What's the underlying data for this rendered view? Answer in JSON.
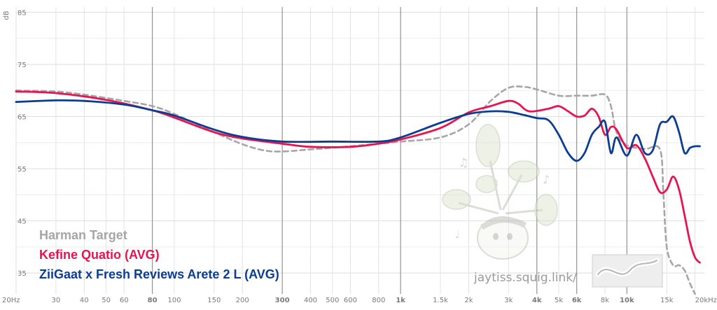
{
  "chart_data": {
    "type": "line",
    "xscale": "log",
    "xlim": [
      20,
      22000
    ],
    "ylim": [
      31,
      86
    ],
    "ylabel": "dB",
    "grid": true,
    "legend_position": "bottom-left",
    "y_ticks": [
      35,
      45,
      55,
      65,
      75,
      85
    ],
    "x_ticks": [
      {
        "v": 20,
        "label": "20Hz",
        "major": false
      },
      {
        "v": 30,
        "label": "30",
        "major": false
      },
      {
        "v": 40,
        "label": "40",
        "major": false
      },
      {
        "v": 50,
        "label": "50",
        "major": false
      },
      {
        "v": 60,
        "label": "60",
        "major": false
      },
      {
        "v": 80,
        "label": "80",
        "major": true
      },
      {
        "v": 100,
        "label": "100",
        "major": false
      },
      {
        "v": 150,
        "label": "150",
        "major": false
      },
      {
        "v": 200,
        "label": "200",
        "major": false
      },
      {
        "v": 300,
        "label": "300",
        "major": true
      },
      {
        "v": 400,
        "label": "400",
        "major": false
      },
      {
        "v": 500,
        "label": "500",
        "major": false
      },
      {
        "v": 600,
        "label": "600",
        "major": false
      },
      {
        "v": 800,
        "label": "800",
        "major": false
      },
      {
        "v": 1000,
        "label": "1k",
        "major": true
      },
      {
        "v": 1500,
        "label": "1.5k",
        "major": false
      },
      {
        "v": 2000,
        "label": "2k",
        "major": false
      },
      {
        "v": 3000,
        "label": "3k",
        "major": false
      },
      {
        "v": 4000,
        "label": "4k",
        "major": true
      },
      {
        "v": 5000,
        "label": "5k",
        "major": false
      },
      {
        "v": 6000,
        "label": "6k",
        "major": true
      },
      {
        "v": 8000,
        "label": "8k",
        "major": false
      },
      {
        "v": 10000,
        "label": "10k",
        "major": true
      },
      {
        "v": 15000,
        "label": "15k",
        "major": false
      },
      {
        "v": 20000,
        "label": "20kHz",
        "major": false
      }
    ],
    "series": [
      {
        "name": "Harman Target",
        "color": "#a8a4a8",
        "dashed": true,
        "points": [
          [
            20,
            70
          ],
          [
            30,
            69.8
          ],
          [
            40,
            69.2
          ],
          [
            60,
            68
          ],
          [
            80,
            67
          ],
          [
            100,
            65.5
          ],
          [
            150,
            62
          ],
          [
            200,
            59.7
          ],
          [
            250,
            58.5
          ],
          [
            300,
            58.3
          ],
          [
            400,
            58.7
          ],
          [
            600,
            59.3
          ],
          [
            800,
            59.8
          ],
          [
            1000,
            60.2
          ],
          [
            1500,
            61
          ],
          [
            2000,
            63.5
          ],
          [
            2500,
            68
          ],
          [
            3000,
            70.5
          ],
          [
            3500,
            70.7
          ],
          [
            4000,
            70.2
          ],
          [
            5000,
            69
          ],
          [
            6000,
            69
          ],
          [
            7000,
            69
          ],
          [
            8000,
            69.2
          ],
          [
            8500,
            67
          ],
          [
            9000,
            62
          ],
          [
            10000,
            59.5
          ],
          [
            12000,
            58.8
          ],
          [
            14000,
            58.7
          ],
          [
            14500,
            50
          ],
          [
            15000,
            40
          ],
          [
            16000,
            36.5
          ],
          [
            17000,
            36.5
          ],
          [
            18000,
            35.5
          ],
          [
            19000,
            33
          ],
          [
            20000,
            31
          ]
        ]
      },
      {
        "name": "Kefine Quatio (AVG)",
        "color": "#e8134f",
        "dashed": false,
        "points": [
          [
            20,
            69.8
          ],
          [
            30,
            69.5
          ],
          [
            50,
            68.2
          ],
          [
            80,
            66.2
          ],
          [
            100,
            64.8
          ],
          [
            150,
            62
          ],
          [
            200,
            60.8
          ],
          [
            300,
            59.8
          ],
          [
            400,
            59.2
          ],
          [
            600,
            59.2
          ],
          [
            800,
            59.8
          ],
          [
            1000,
            60.6
          ],
          [
            1500,
            62.8
          ],
          [
            2000,
            65.8
          ],
          [
            2500,
            67
          ],
          [
            3000,
            68
          ],
          [
            3300,
            67.5
          ],
          [
            3700,
            66
          ],
          [
            4500,
            66.5
          ],
          [
            5000,
            67
          ],
          [
            5500,
            66
          ],
          [
            6000,
            65
          ],
          [
            6500,
            65.2
          ],
          [
            7000,
            66.5
          ],
          [
            7500,
            65
          ],
          [
            8000,
            61.5
          ],
          [
            8500,
            63
          ],
          [
            9000,
            62.5
          ],
          [
            10000,
            59
          ],
          [
            11000,
            59.5
          ],
          [
            12000,
            57
          ],
          [
            13000,
            53.5
          ],
          [
            14000,
            50.5
          ],
          [
            15000,
            51
          ],
          [
            16000,
            53.5
          ],
          [
            17000,
            51
          ],
          [
            18000,
            46
          ],
          [
            19000,
            41
          ],
          [
            20000,
            38
          ],
          [
            21000,
            37
          ]
        ]
      },
      {
        "name": "ZiiGaat x Fresh Reviews Arete 2 L (AVG)",
        "color": "#0c3d91",
        "dashed": false,
        "points": [
          [
            20,
            67.8
          ],
          [
            30,
            68.1
          ],
          [
            40,
            68
          ],
          [
            60,
            67.3
          ],
          [
            80,
            66.2
          ],
          [
            100,
            65.2
          ],
          [
            150,
            62.5
          ],
          [
            200,
            61.1
          ],
          [
            300,
            60.2
          ],
          [
            500,
            60.2
          ],
          [
            800,
            60.2
          ],
          [
            1000,
            61
          ],
          [
            1500,
            63.8
          ],
          [
            2000,
            65.5
          ],
          [
            2500,
            66
          ],
          [
            3000,
            65.9
          ],
          [
            3500,
            65.3
          ],
          [
            4000,
            64.7
          ],
          [
            4500,
            64.3
          ],
          [
            5000,
            61.5
          ],
          [
            5500,
            58
          ],
          [
            6000,
            56.5
          ],
          [
            6500,
            58
          ],
          [
            7000,
            61.5
          ],
          [
            7500,
            63
          ],
          [
            8000,
            64
          ],
          [
            8500,
            58
          ],
          [
            9000,
            61
          ],
          [
            10000,
            57.5
          ],
          [
            11000,
            61.5
          ],
          [
            12000,
            58
          ],
          [
            13000,
            58.5
          ],
          [
            14000,
            63.5
          ],
          [
            15000,
            64
          ],
          [
            16000,
            65
          ],
          [
            17000,
            62
          ],
          [
            18000,
            58
          ],
          [
            19000,
            59
          ],
          [
            20000,
            59.3
          ],
          [
            21000,
            59.3
          ]
        ]
      }
    ]
  },
  "legend": [
    {
      "label": "Harman Target",
      "color": "#a8a4a8"
    },
    {
      "label": "Kefine Quatio (AVG)",
      "color": "#e8134f"
    },
    {
      "label": "ZiiGaat x Fresh Reviews Arete 2 L (AVG)",
      "color": "#0c3d91"
    }
  ],
  "watermark": {
    "text": "jaytiss.squig.link/"
  }
}
